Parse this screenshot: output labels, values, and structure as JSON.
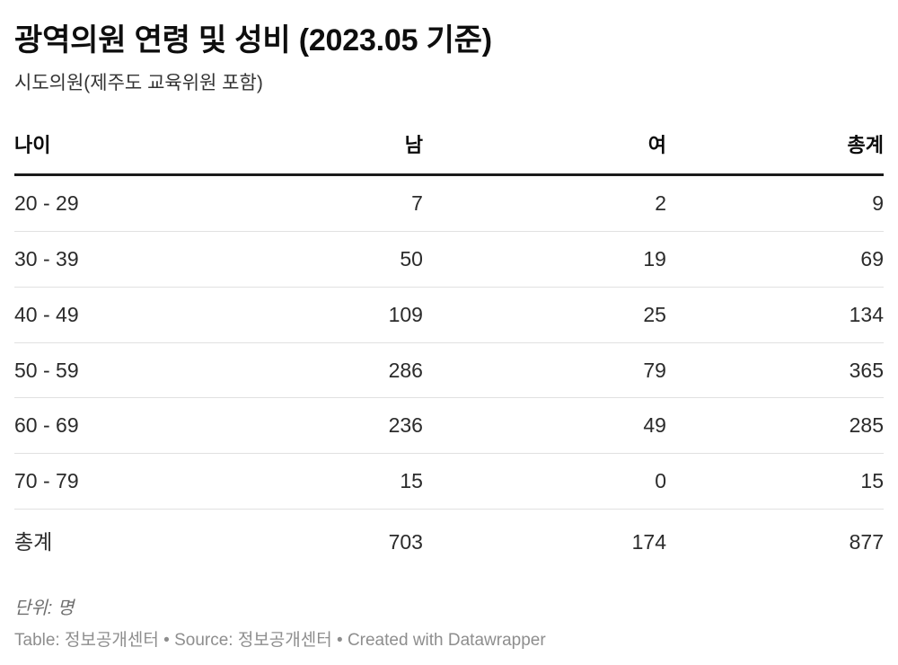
{
  "header": {
    "title": "광역의원 연령 및 성비 (2023.05 기준)",
    "subtitle": "시도의원(제주도 교육위원 포함)"
  },
  "chart_data": {
    "type": "table",
    "columns": [
      "나이",
      "남",
      "여",
      "총계"
    ],
    "column_align": [
      "left",
      "right",
      "right",
      "right"
    ],
    "rows": [
      [
        "20 - 29",
        "7",
        "2",
        "9"
      ],
      [
        "30 - 39",
        "50",
        "19",
        "69"
      ],
      [
        "40 - 49",
        "109",
        "25",
        "134"
      ],
      [
        "50 - 59",
        "286",
        "79",
        "365"
      ],
      [
        "60 - 69",
        "236",
        "49",
        "285"
      ],
      [
        "70 - 79",
        "15",
        "0",
        "15"
      ]
    ],
    "total_row": [
      "총계",
      "703",
      "174",
      "877"
    ],
    "unit": "명",
    "layout_hints": {
      "header_rule": "thick-black-under-header",
      "row_rules": "thin-light-gray",
      "numeric_columns_right_aligned": true
    }
  },
  "footer": {
    "note": "단위: 명",
    "attribution_parts": [
      {
        "text": "Table: ",
        "link": false
      },
      {
        "text": "정보공개센터",
        "link": true
      },
      {
        "text": " • Source: ",
        "link": false
      },
      {
        "text": "정보공개센터",
        "link": true
      },
      {
        "text": " • Created with ",
        "link": false
      },
      {
        "text": "Datawrapper",
        "link": true
      }
    ]
  },
  "colors": {
    "title": "#0e0e0e",
    "subtitle": "#333333",
    "header_text": "#0b0b0b",
    "body_text": "#2b2b2b",
    "header_rule": "#1a1a1a",
    "row_rule": "#e1e1e1",
    "note": "#6f6f6f",
    "attribution": "#8e8e8e",
    "background": "#ffffff"
  }
}
